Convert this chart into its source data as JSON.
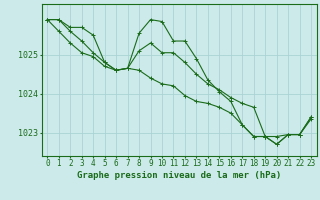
{
  "background_color": "#cceaea",
  "grid_color": "#aad4d4",
  "line_color": "#1a6b1a",
  "marker_color": "#1a6b1a",
  "xlabel": "Graphe pression niveau de la mer (hPa)",
  "xlabel_fontsize": 6.5,
  "tick_fontsize": 5.5,
  "xlim": [
    -0.5,
    23.5
  ],
  "ylim": [
    1022.4,
    1026.3
  ],
  "yticks": [
    1023,
    1024,
    1025
  ],
  "xticks": [
    0,
    1,
    2,
    3,
    4,
    5,
    6,
    7,
    8,
    9,
    10,
    11,
    12,
    13,
    14,
    15,
    16,
    17,
    18,
    19,
    20,
    21,
    22,
    23
  ],
  "series1": [
    1025.9,
    1025.9,
    1025.7,
    1025.7,
    1025.5,
    1024.8,
    1024.6,
    1024.65,
    1025.55,
    1025.9,
    1025.85,
    1025.35,
    1025.35,
    1024.9,
    1024.35,
    1024.05,
    1023.8,
    1023.2,
    1022.9,
    1022.9,
    1022.7,
    1022.95,
    1022.95,
    1023.35
  ],
  "series2": [
    1025.9,
    1025.9,
    1025.6,
    1025.35,
    1025.05,
    1024.8,
    1024.6,
    1024.65,
    1025.1,
    1025.3,
    1025.05,
    1025.05,
    1024.8,
    1024.5,
    1024.25,
    1024.1,
    1023.9,
    1023.75,
    1023.65,
    1022.9,
    1022.9,
    1022.95,
    1022.95,
    1023.4
  ],
  "series3": [
    1025.9,
    1025.6,
    1025.3,
    1025.05,
    1024.95,
    1024.7,
    1024.6,
    1024.65,
    1024.6,
    1024.4,
    1024.25,
    1024.2,
    1023.95,
    1023.8,
    1023.75,
    1023.65,
    1023.5,
    1023.2,
    1022.9,
    1022.9,
    1022.7,
    1022.95,
    1022.95,
    1023.4
  ]
}
